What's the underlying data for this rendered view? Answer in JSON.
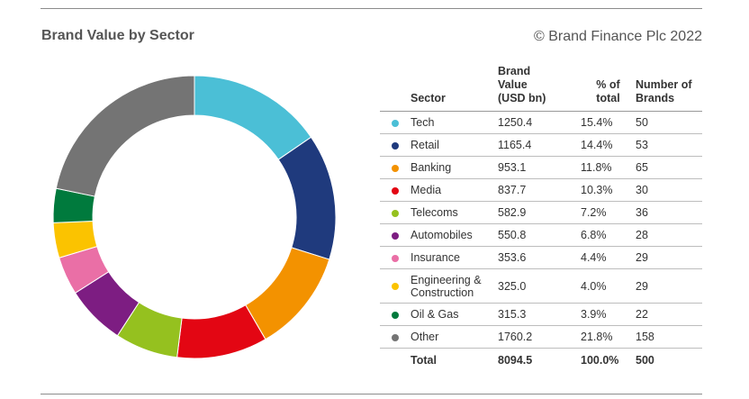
{
  "header": {
    "title": "Brand Value by Sector",
    "copyright": "© Brand Finance Plc 2022"
  },
  "table": {
    "headers": {
      "sector": "Sector",
      "value": "Brand Value (USD bn)",
      "pct": "% of total",
      "count": "Number of Brands"
    },
    "rows": [
      {
        "sector": "Tech",
        "value": "1250.4",
        "pct": "15.4%",
        "count": "50",
        "color": "#4bbfd6"
      },
      {
        "sector": "Retail",
        "value": "1165.4",
        "pct": "14.4%",
        "count": "53",
        "color": "#1f3a7d"
      },
      {
        "sector": "Banking",
        "value": "953.1",
        "pct": "11.8%",
        "count": "65",
        "color": "#f39200"
      },
      {
        "sector": "Media",
        "value": "837.7",
        "pct": "10.3%",
        "count": "30",
        "color": "#e30613"
      },
      {
        "sector": "Telecoms",
        "value": "582.9",
        "pct": "7.2%",
        "count": "36",
        "color": "#95c11f"
      },
      {
        "sector": "Automobiles",
        "value": "550.8",
        "pct": "6.8%",
        "count": "28",
        "color": "#7d1d82"
      },
      {
        "sector": "Insurance",
        "value": "353.6",
        "pct": "4.4%",
        "count": "29",
        "color": "#ea6fa6"
      },
      {
        "sector": "Engineering & Construction",
        "value": "325.0",
        "pct": "4.0%",
        "count": "29",
        "color": "#fbc300"
      },
      {
        "sector": "Oil & Gas",
        "value": "315.3",
        "pct": "3.9%",
        "count": "22",
        "color": "#007a3d"
      },
      {
        "sector": "Other",
        "value": "1760.2",
        "pct": "21.8%",
        "count": "158",
        "color": "#747474"
      }
    ],
    "total": {
      "sector": "Total",
      "value": "8094.5",
      "pct": "100.0%",
      "count": "500"
    }
  },
  "chart_data": {
    "type": "pie",
    "categories": [
      "Tech",
      "Retail",
      "Banking",
      "Media",
      "Telecoms",
      "Automobiles",
      "Insurance",
      "Engineering & Construction",
      "Oil & Gas",
      "Other"
    ],
    "values": [
      1250.4,
      1165.4,
      953.1,
      837.7,
      582.9,
      550.8,
      353.6,
      325.0,
      315.3,
      1760.2
    ],
    "colors": [
      "#4bbfd6",
      "#1f3a7d",
      "#f39200",
      "#e30613",
      "#95c11f",
      "#7d1d82",
      "#ea6fa6",
      "#fbc300",
      "#007a3d",
      "#747474"
    ],
    "title": "Brand Value by Sector",
    "donut": true,
    "legend": "table-right"
  }
}
